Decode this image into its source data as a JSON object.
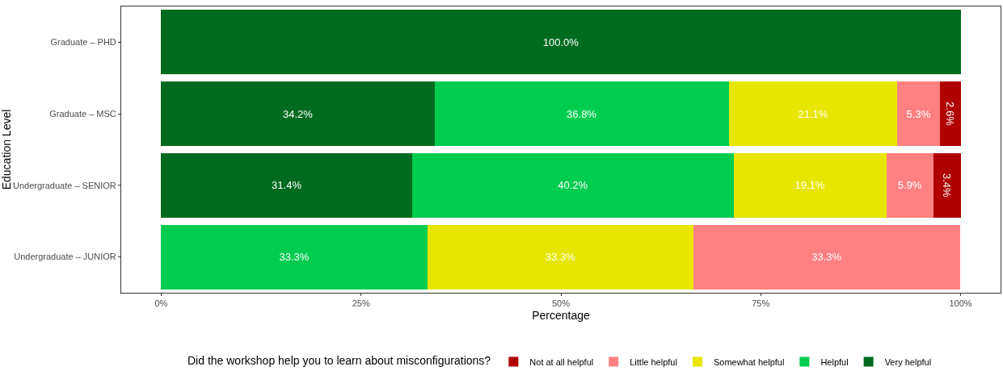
{
  "chart_data": {
    "type": "bar",
    "orientation": "horizontal",
    "stacked": true,
    "xlabel": "Percentage",
    "ylabel": "Education Level",
    "legend_title": "Did the workshop help you to learn about misconfigurations?",
    "legend": "bottom",
    "grid": false,
    "categories": [
      "Graduate – PHD",
      "Graduate – MSC",
      "Undergraduate – SENIOR",
      "Undergraduate – JUNIOR"
    ],
    "xlim": [
      -5,
      105
    ],
    "xticks": [
      {
        "value": 0,
        "label": "0%"
      },
      {
        "value": 25,
        "label": "25%"
      },
      {
        "value": 50,
        "label": "50%"
      },
      {
        "value": 75,
        "label": "75%"
      },
      {
        "value": 100,
        "label": "100%"
      }
    ],
    "series": [
      {
        "name": "Very helpful",
        "color": "#006b1f",
        "values": [
          100,
          34.2,
          31.4,
          null
        ],
        "value_labels": [
          "100.0%",
          "34.2%",
          "31.4%",
          null
        ]
      },
      {
        "name": "Helpful",
        "color": "#00cc50",
        "values": [
          null,
          36.8,
          40.2,
          33.3
        ],
        "value_labels": [
          null,
          "36.8%",
          "40.2%",
          "33.3%"
        ]
      },
      {
        "name": "Somewhat helpful",
        "color": "#e6e600",
        "values": [
          null,
          21.1,
          19.1,
          33.3
        ],
        "value_labels": [
          null,
          "21.1%",
          "19.1%",
          "33.3%"
        ]
      },
      {
        "name": "Little helpful",
        "color": "#ff8080",
        "values": [
          null,
          5.3,
          5.9,
          33.3
        ],
        "value_labels": [
          null,
          "5.3%",
          "5.9%",
          "33.3%"
        ]
      },
      {
        "name": "Not at all helpful",
        "color": "#b00000",
        "values": [
          null,
          2.6,
          3.4,
          null
        ],
        "value_labels": [
          null,
          "2.6%",
          "3.4%",
          null
        ]
      }
    ]
  }
}
